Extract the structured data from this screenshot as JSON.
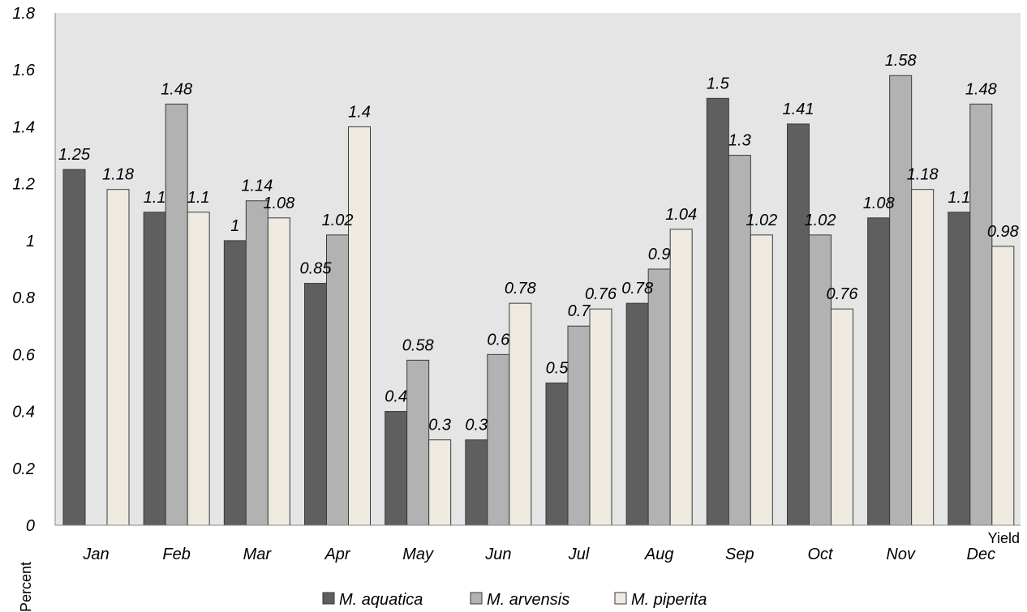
{
  "chart_data": {
    "type": "bar",
    "title": "",
    "xlabel": "Yield",
    "ylabel": "Percent",
    "categories": [
      "Jan",
      "Feb",
      "Mar",
      "Apr",
      "May",
      "Jun",
      "Jul",
      "Aug",
      "Sep",
      "Oct",
      "Nov",
      "Dec"
    ],
    "series": [
      {
        "name": "M. aquatica",
        "color": "#5f5f5f",
        "values": [
          1.25,
          1.1,
          1,
          0.85,
          0.4,
          0.3,
          0.5,
          0.78,
          1.5,
          1.41,
          1.08,
          1.1
        ]
      },
      {
        "name": "M. arvensis",
        "color": "#b2b2b2",
        "values": [
          null,
          1.48,
          1.14,
          1.02,
          0.58,
          0.6,
          0.7,
          0.9,
          1.3,
          1.02,
          1.58,
          1.48
        ]
      },
      {
        "name": "M. piperita",
        "color": "#efeadf",
        "values": [
          1.18,
          1.1,
          1.08,
          1.4,
          0.3,
          0.78,
          0.76,
          1.04,
          1.02,
          0.76,
          1.18,
          0.98
        ]
      }
    ],
    "ylim": [
      0,
      1.8
    ],
    "yticks": [
      "0",
      "0.2",
      "0.4",
      "0.6",
      "0.8",
      "1",
      "1.2",
      "1.4",
      "1.6",
      "1.8"
    ],
    "grid": false,
    "plot_background": "#e5e5e5",
    "legend_position": "bottom"
  }
}
